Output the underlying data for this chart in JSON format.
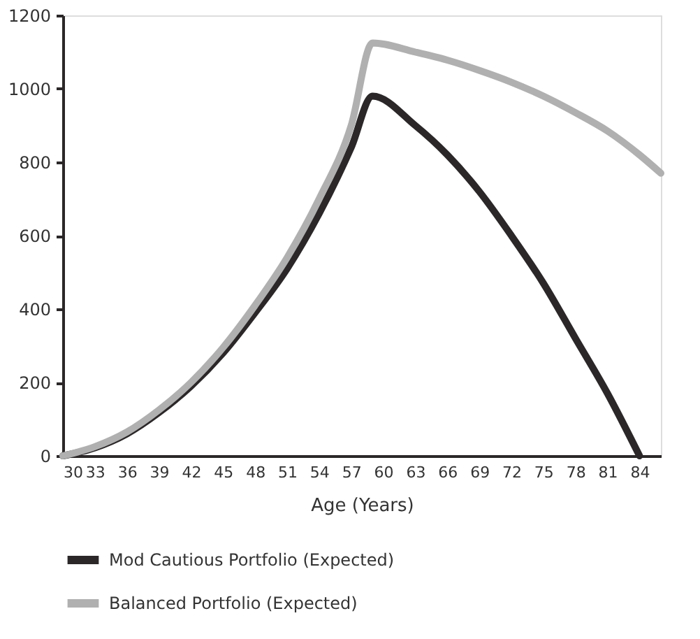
{
  "chart_data": {
    "type": "line",
    "xlabel": "Age (Years)",
    "xlim": [
      30,
      86
    ],
    "xticks": [
      30,
      33,
      36,
      39,
      42,
      45,
      48,
      51,
      54,
      57,
      60,
      63,
      66,
      69,
      72,
      75,
      78,
      81,
      84
    ],
    "ylim": [
      0,
      1200
    ],
    "yticks": [
      0,
      200,
      400,
      600,
      800,
      1000,
      1200
    ],
    "grid": false,
    "legend": "bottom",
    "marker": "none",
    "line_style": "solid",
    "series": [
      {
        "name": "Mod Cautious Portfolio (Expected)",
        "color": "#2b2728",
        "x": [
          30,
          33,
          36,
          39,
          42,
          45,
          48,
          51,
          54,
          57,
          59,
          63,
          66,
          69,
          72,
          75,
          78,
          81,
          84
        ],
        "values": [
          0,
          22,
          60,
          118,
          190,
          280,
          390,
          510,
          660,
          840,
          980,
          900,
          820,
          720,
          600,
          470,
          320,
          170,
          0
        ]
      },
      {
        "name": "Balanced Portfolio (Expected)",
        "color": "#b0b0b0",
        "x": [
          30,
          33,
          36,
          39,
          42,
          45,
          48,
          51,
          54,
          57,
          59,
          63,
          66,
          69,
          72,
          75,
          78,
          81,
          84,
          86
        ],
        "values": [
          0,
          25,
          65,
          125,
          200,
          295,
          410,
          540,
          700,
          900,
          1125,
          1100,
          1078,
          1050,
          1018,
          980,
          935,
          885,
          820,
          770
        ]
      }
    ]
  }
}
